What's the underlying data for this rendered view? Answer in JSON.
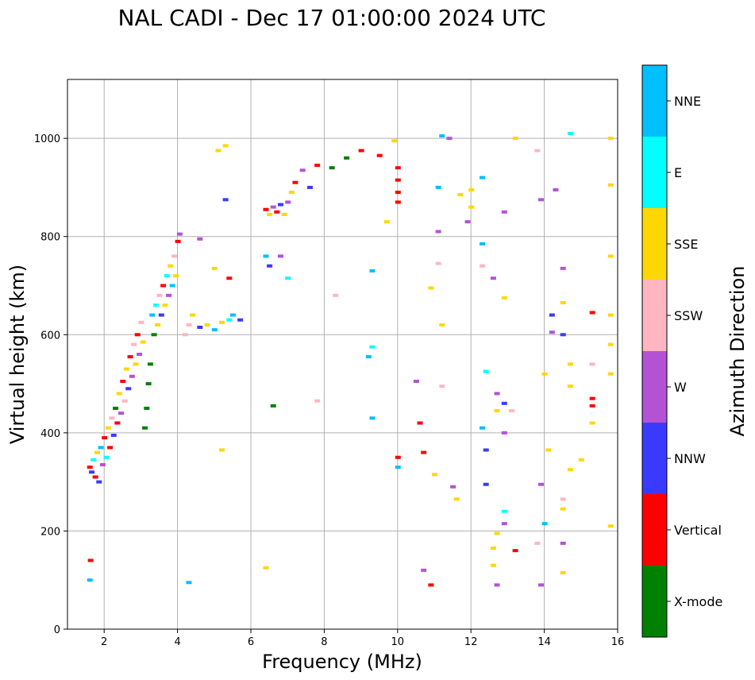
{
  "chart_data": {
    "type": "scatter",
    "title": "NAL CADI - Dec 17 01:00:00 2024 UTC",
    "xlabel": "Frequency (MHz)",
    "ylabel": "Virtual height (km)",
    "xlim": [
      1,
      16
    ],
    "ylim": [
      0,
      1120
    ],
    "x_ticks": [
      2,
      4,
      6,
      8,
      10,
      12,
      14,
      16
    ],
    "y_ticks": [
      0,
      200,
      400,
      600,
      800,
      1000
    ],
    "grid": true,
    "colorbar": {
      "label": "Azimuth Direction",
      "categories": [
        {
          "name": "X-mode",
          "color": "#008000"
        },
        {
          "name": "Vertical",
          "color": "#ff0000"
        },
        {
          "name": "NNW",
          "color": "#3a3aff"
        },
        {
          "name": "W",
          "color": "#b452d6"
        },
        {
          "name": "SSW",
          "color": "#ffb6c1"
        },
        {
          "name": "SSE",
          "color": "#ffd700"
        },
        {
          "name": "E",
          "color": "#00ffff"
        },
        {
          "name": "NNE",
          "color": "#00bfff"
        }
      ]
    },
    "points": [
      [
        1.6,
        330,
        "Vertical"
      ],
      [
        1.65,
        320,
        "NNW"
      ],
      [
        1.7,
        345,
        "E"
      ],
      [
        1.75,
        310,
        "Vertical"
      ],
      [
        1.8,
        360,
        "SSE"
      ],
      [
        1.85,
        300,
        "NNW"
      ],
      [
        1.9,
        370,
        "NNE"
      ],
      [
        1.95,
        335,
        "W"
      ],
      [
        2.0,
        390,
        "Vertical"
      ],
      [
        2.05,
        350,
        "E"
      ],
      [
        2.1,
        410,
        "SSE"
      ],
      [
        2.15,
        370,
        "Vertical"
      ],
      [
        2.2,
        430,
        "SSW"
      ],
      [
        2.25,
        395,
        "NNW"
      ],
      [
        2.3,
        450,
        "X-mode"
      ],
      [
        2.35,
        420,
        "Vertical"
      ],
      [
        2.4,
        480,
        "SSE"
      ],
      [
        2.45,
        440,
        "W"
      ],
      [
        2.5,
        505,
        "Vertical"
      ],
      [
        2.55,
        465,
        "SSW"
      ],
      [
        2.6,
        530,
        "SSE"
      ],
      [
        2.65,
        490,
        "NNW"
      ],
      [
        2.7,
        555,
        "Vertical"
      ],
      [
        2.75,
        515,
        "W"
      ],
      [
        2.8,
        580,
        "SSW"
      ],
      [
        2.85,
        540,
        "SSE"
      ],
      [
        2.9,
        600,
        "Vertical"
      ],
      [
        2.95,
        560,
        "W"
      ],
      [
        3.0,
        625,
        "SSW"
      ],
      [
        3.05,
        585,
        "SSE"
      ],
      [
        3.1,
        410,
        "X-mode"
      ],
      [
        3.15,
        450,
        "X-mode"
      ],
      [
        3.2,
        500,
        "X-mode"
      ],
      [
        3.25,
        540,
        "X-mode"
      ],
      [
        3.3,
        640,
        "NNE"
      ],
      [
        3.35,
        600,
        "X-mode"
      ],
      [
        3.4,
        660,
        "E"
      ],
      [
        3.45,
        620,
        "SSE"
      ],
      [
        3.5,
        680,
        "SSW"
      ],
      [
        3.55,
        640,
        "NNW"
      ],
      [
        3.6,
        700,
        "Vertical"
      ],
      [
        3.65,
        660,
        "SSE"
      ],
      [
        3.7,
        720,
        "E"
      ],
      [
        3.75,
        680,
        "W"
      ],
      [
        3.8,
        740,
        "SSE"
      ],
      [
        3.85,
        700,
        "NNE"
      ],
      [
        3.9,
        760,
        "SSW"
      ],
      [
        3.95,
        720,
        "SSE"
      ],
      [
        4.0,
        790,
        "Vertical"
      ],
      [
        4.05,
        805,
        "W"
      ],
      [
        4.2,
        600,
        "SSW"
      ],
      [
        4.3,
        620,
        "SSW"
      ],
      [
        4.4,
        640,
        "SSE"
      ],
      [
        4.6,
        615,
        "NNW"
      ],
      [
        4.8,
        620,
        "SSE"
      ],
      [
        5.0,
        610,
        "NNE"
      ],
      [
        5.2,
        625,
        "SSE"
      ],
      [
        5.4,
        630,
        "E"
      ],
      [
        5.5,
        640,
        "NNE"
      ],
      [
        1.6,
        100,
        "NNE"
      ],
      [
        1.62,
        140,
        "Vertical"
      ],
      [
        4.3,
        95,
        "NNE"
      ],
      [
        5.2,
        365,
        "SSE"
      ],
      [
        5.3,
        875,
        "NNW"
      ],
      [
        6.4,
        855,
        "Vertical"
      ],
      [
        6.5,
        845,
        "SSE"
      ],
      [
        6.6,
        860,
        "W"
      ],
      [
        6.7,
        850,
        "Vertical"
      ],
      [
        6.8,
        865,
        "NNW"
      ],
      [
        6.9,
        845,
        "SSE"
      ],
      [
        7.0,
        870,
        "W"
      ],
      [
        7.1,
        890,
        "SSE"
      ],
      [
        7.2,
        910,
        "Vertical"
      ],
      [
        7.4,
        935,
        "W"
      ],
      [
        7.6,
        900,
        "NNW"
      ],
      [
        7.8,
        945,
        "Vertical"
      ],
      [
        8.2,
        940,
        "X-mode"
      ],
      [
        8.6,
        960,
        "X-mode"
      ],
      [
        9.0,
        975,
        "Vertical"
      ],
      [
        9.5,
        965,
        "Vertical"
      ],
      [
        10.0,
        940,
        "Vertical"
      ],
      [
        10.0,
        915,
        "Vertical"
      ],
      [
        10.0,
        890,
        "Vertical"
      ],
      [
        10.0,
        870,
        "Vertical"
      ],
      [
        10.0,
        350,
        "Vertical"
      ],
      [
        10.0,
        330,
        "NNE"
      ],
      [
        6.6,
        455,
        "X-mode"
      ],
      [
        6.4,
        760,
        "NNE"
      ],
      [
        6.5,
        740,
        "NNW"
      ],
      [
        6.8,
        760,
        "W"
      ],
      [
        7.0,
        715,
        "E"
      ],
      [
        9.3,
        730,
        "NNE"
      ],
      [
        9.3,
        575,
        "E"
      ],
      [
        9.3,
        430,
        "NNE"
      ],
      [
        10.6,
        420,
        "Vertical"
      ],
      [
        10.7,
        360,
        "Vertical"
      ],
      [
        10.9,
        695,
        "SSE"
      ],
      [
        11.1,
        745,
        "SSW"
      ],
      [
        11.2,
        620,
        "SSE"
      ],
      [
        11.5,
        290,
        "W"
      ],
      [
        11.9,
        830,
        "W"
      ],
      [
        12.3,
        920,
        "NNE"
      ],
      [
        12.3,
        785,
        "NNE"
      ],
      [
        12.3,
        740,
        "SSW"
      ],
      [
        12.4,
        525,
        "E"
      ],
      [
        12.4,
        365,
        "NNW"
      ],
      [
        12.4,
        295,
        "NNW"
      ],
      [
        12.6,
        715,
        "W"
      ],
      [
        12.7,
        480,
        "W"
      ],
      [
        12.7,
        445,
        "SSE"
      ],
      [
        12.7,
        195,
        "SSE"
      ],
      [
        12.7,
        90,
        "W"
      ],
      [
        12.9,
        675,
        "SSE"
      ],
      [
        12.9,
        460,
        "NNW"
      ],
      [
        12.9,
        240,
        "E"
      ],
      [
        12.9,
        215,
        "W"
      ],
      [
        13.2,
        160,
        "Vertical"
      ],
      [
        13.2,
        1000,
        "SSE"
      ],
      [
        13.8,
        975,
        "SSW"
      ],
      [
        13.9,
        90,
        "W"
      ],
      [
        14.0,
        520,
        "SSE"
      ],
      [
        14.0,
        215,
        "NNE"
      ],
      [
        14.2,
        640,
        "NNW"
      ],
      [
        14.2,
        605,
        "W"
      ],
      [
        14.3,
        895,
        "W"
      ],
      [
        14.5,
        735,
        "W"
      ],
      [
        14.5,
        600,
        "NNW"
      ],
      [
        14.7,
        1010,
        "E"
      ],
      [
        14.7,
        540,
        "SSE"
      ],
      [
        14.7,
        325,
        "SSE"
      ],
      [
        15.0,
        345,
        "SSE"
      ],
      [
        15.3,
        645,
        "Vertical"
      ],
      [
        15.3,
        470,
        "Vertical"
      ],
      [
        15.3,
        455,
        "Vertical"
      ],
      [
        15.3,
        420,
        "SSE"
      ],
      [
        15.3,
        540,
        "SSW"
      ],
      [
        15.8,
        1000,
        "SSE"
      ],
      [
        15.8,
        905,
        "SSE"
      ],
      [
        15.8,
        760,
        "SSE"
      ],
      [
        15.8,
        640,
        "SSE"
      ],
      [
        15.8,
        580,
        "SSE"
      ],
      [
        15.8,
        520,
        "SSE"
      ],
      [
        15.8,
        210,
        "SSE"
      ],
      [
        14.5,
        115,
        "SSE"
      ],
      [
        14.5,
        175,
        "W"
      ],
      [
        13.8,
        175,
        "SSW"
      ],
      [
        12.6,
        130,
        "SSE"
      ],
      [
        12.6,
        165,
        "SSE"
      ],
      [
        10.7,
        120,
        "W"
      ],
      [
        10.9,
        90,
        "Vertical"
      ],
      [
        11.0,
        315,
        "SSE"
      ],
      [
        11.6,
        265,
        "SSE"
      ],
      [
        11.2,
        495,
        "SSW"
      ],
      [
        10.5,
        505,
        "W"
      ],
      [
        9.7,
        830,
        "SSE"
      ],
      [
        9.9,
        995,
        "SSE"
      ],
      [
        11.2,
        1005,
        "NNE"
      ],
      [
        11.4,
        1000,
        "W"
      ],
      [
        11.1,
        810,
        "W"
      ],
      [
        11.1,
        900,
        "NNE"
      ],
      [
        11.7,
        885,
        "SSE"
      ],
      [
        12.0,
        860,
        "SSE"
      ],
      [
        12.0,
        895,
        "SSE"
      ],
      [
        12.9,
        850,
        "W"
      ],
      [
        13.9,
        875,
        "W"
      ],
      [
        14.5,
        665,
        "SSE"
      ],
      [
        13.1,
        445,
        "SSW"
      ],
      [
        12.9,
        400,
        "W"
      ],
      [
        12.3,
        410,
        "NNE"
      ],
      [
        14.5,
        245,
        "SSE"
      ],
      [
        14.5,
        265,
        "SSW"
      ],
      [
        13.9,
        295,
        "W"
      ],
      [
        14.1,
        365,
        "SSE"
      ],
      [
        14.7,
        495,
        "SSE"
      ],
      [
        8.3,
        680,
        "SSW"
      ],
      [
        7.8,
        465,
        "SSW"
      ],
      [
        9.2,
        555,
        "NNE"
      ],
      [
        5.1,
        975,
        "SSE"
      ],
      [
        5.3,
        985,
        "SSE"
      ],
      [
        6.4,
        125,
        "SSE"
      ],
      [
        5.0,
        735,
        "SSE"
      ],
      [
        4.6,
        795,
        "W"
      ],
      [
        5.4,
        715,
        "Vertical"
      ],
      [
        5.7,
        630,
        "NNW"
      ]
    ]
  }
}
